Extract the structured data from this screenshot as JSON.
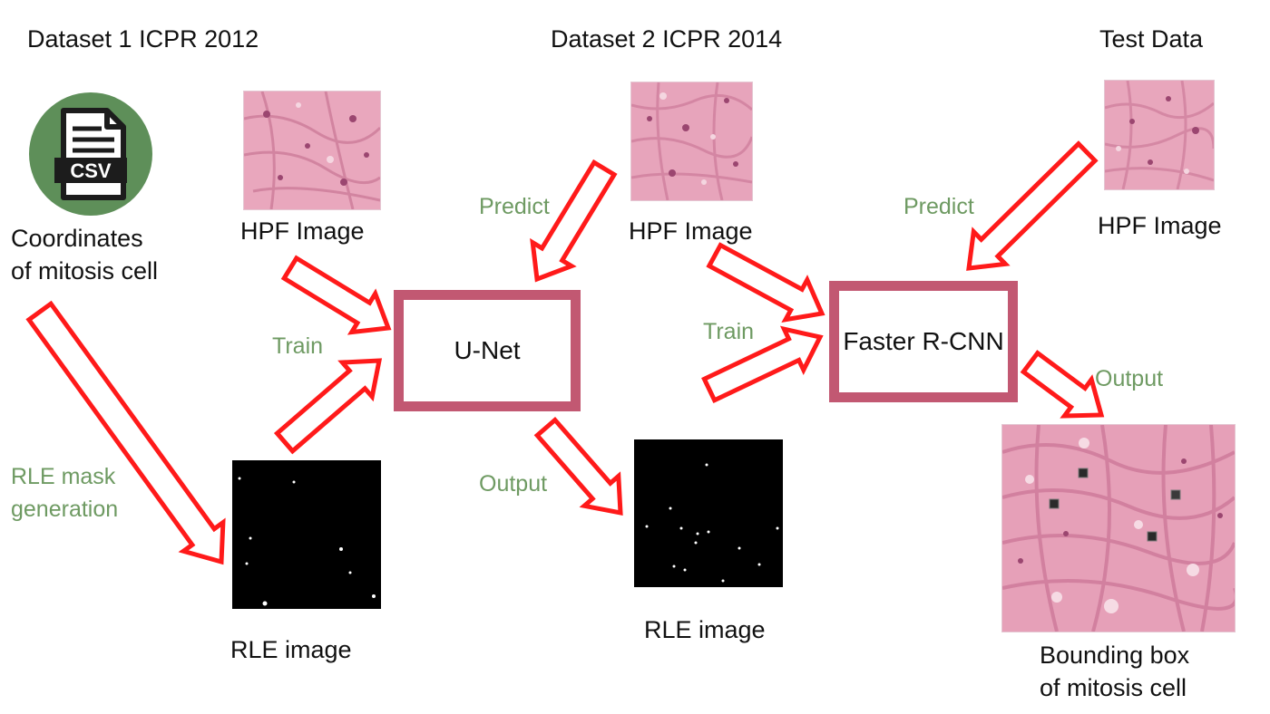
{
  "headers": {
    "dataset1": "Dataset 1 ICPR 2012",
    "dataset2": "Dataset 2 ICPR 2014",
    "test": "Test Data"
  },
  "csv_icon": {
    "name": "csv-file-icon",
    "text": "CSV",
    "circle_color": "#5e8f59"
  },
  "labels": {
    "coords_line1": "Coordinates",
    "coords_line2": "of mitosis cell",
    "hpf1": "HPF Image",
    "hpf2": "HPF Image",
    "hpf3": "HPF Image",
    "rle1": "RLE image",
    "rle2": "RLE image",
    "bbox_line1": "Bounding box",
    "bbox_line2": "of mitosis cell"
  },
  "edge_labels": {
    "rle_mask_line1": "RLE mask",
    "rle_mask_line2": "generation",
    "train1": "Train",
    "predict1": "Predict",
    "output1": "Output",
    "train2": "Train",
    "predict2": "Predict",
    "output2": "Output"
  },
  "models": {
    "unet": "U-Net",
    "faster_rcnn": "Faster R-CNN"
  },
  "colors": {
    "arrow_outline": "#ff1a1a",
    "box_border": "#c25872",
    "edge_label": "#6e9a62",
    "tissue": "#e9a7bd"
  }
}
